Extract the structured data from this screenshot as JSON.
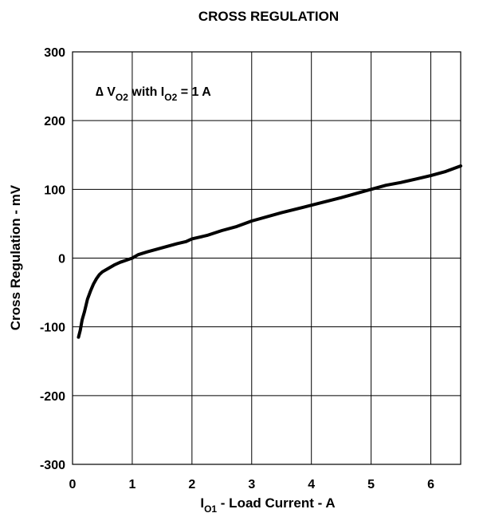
{
  "chart_data": {
    "type": "line",
    "title": "CROSS REGULATION",
    "xlabel": {
      "main": "I",
      "sub": "O1",
      "rest": " - Load Current - A"
    },
    "ylabel": "Cross Regulation  - mV",
    "xlim": [
      0,
      6.5
    ],
    "ylim": [
      -300,
      300
    ],
    "xticks": [
      0,
      1,
      2,
      3,
      4,
      5,
      6
    ],
    "yticks": [
      -300,
      -200,
      -100,
      0,
      100,
      200,
      300
    ],
    "grid": true,
    "annotation": {
      "delta": "∆ V",
      "sub1": "O2",
      "mid": " with I",
      "sub2": "O2",
      "rest": " = 1 A"
    },
    "series": [
      {
        "color": "#000000",
        "x": [
          0.1,
          0.13,
          0.16,
          0.2,
          0.25,
          0.3,
          0.35,
          0.4,
          0.45,
          0.5,
          0.6,
          0.7,
          0.8,
          0.9,
          1.0,
          1.1,
          1.25,
          1.5,
          1.75,
          1.9,
          2.0,
          2.25,
          2.5,
          2.75,
          3.0,
          3.5,
          4.0,
          4.5,
          5.0,
          5.25,
          5.5,
          5.75,
          6.0,
          6.25,
          6.5
        ],
        "y": [
          -115,
          -105,
          -90,
          -78,
          -60,
          -48,
          -38,
          -30,
          -24,
          -20,
          -15,
          -10,
          -6,
          -3,
          0,
          5,
          9,
          15,
          21,
          24,
          28,
          33,
          40,
          46,
          54,
          66,
          77,
          88,
          100,
          106,
          110,
          115,
          120,
          126,
          134
        ]
      }
    ]
  }
}
